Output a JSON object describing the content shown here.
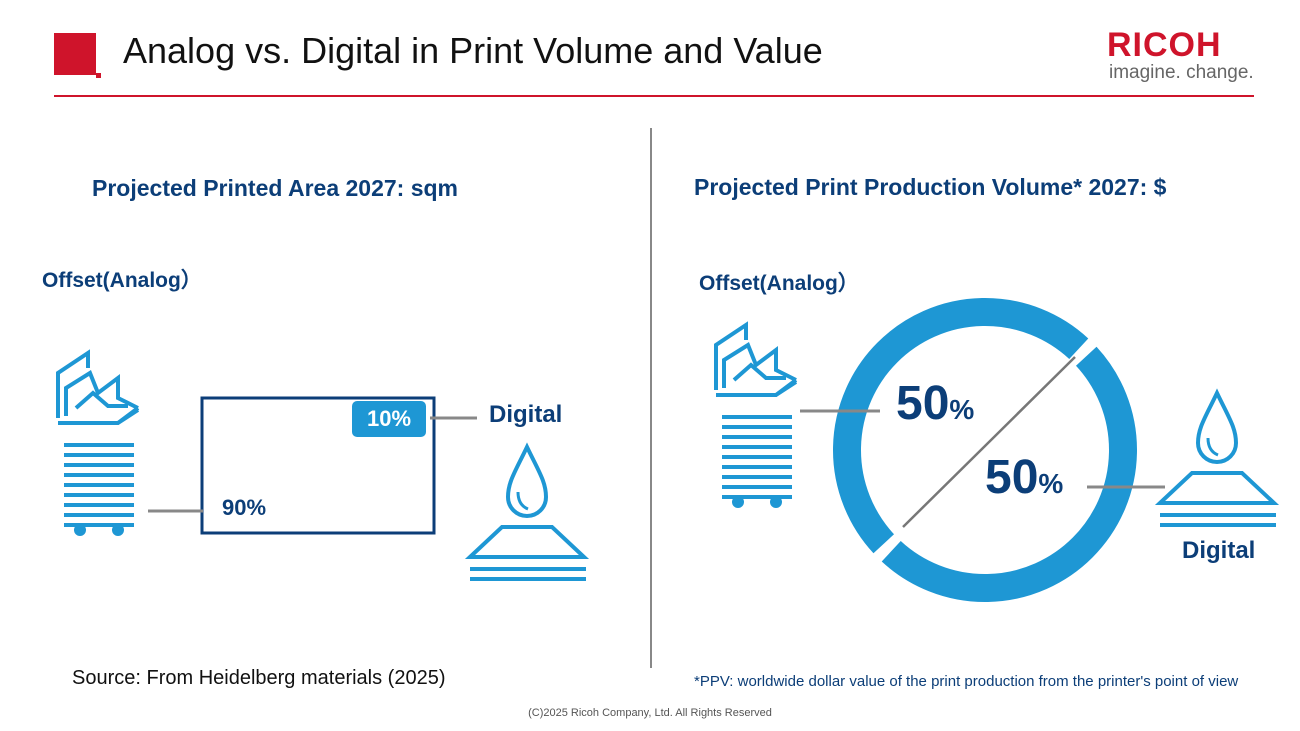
{
  "header": {
    "title": "Analog vs. Digital in Print Volume and Value",
    "logo": "RICOH",
    "tagline": "imagine. change.",
    "accent": "#cf142b"
  },
  "left": {
    "subtitle": "Projected Printed Area 2027: sqm",
    "analog_label": "Offset(Analog）",
    "digital_label": "Digital"
  },
  "right": {
    "subtitle": "Projected Print Production Volume* 2027: $",
    "analog_label": "Offset(Analog）",
    "digital_label": "Digital"
  },
  "chart_data": [
    {
      "type": "area",
      "title": "Projected Printed Area 2027: sqm",
      "categories": [
        "Offset(Analog)",
        "Digital"
      ],
      "values": [
        90,
        10
      ],
      "labels": [
        "90%",
        "10%"
      ]
    },
    {
      "type": "pie",
      "title": "Projected Print Production Volume* 2027: $",
      "categories": [
        "Offset(Analog)",
        "Digital"
      ],
      "values": [
        50,
        50
      ],
      "labels": [
        "50",
        "50"
      ],
      "unit": "%",
      "color": "#1e97d4"
    }
  ],
  "footer": {
    "source": "Source: From Heidelberg materials (2025)",
    "note": "*PPV: worldwide dollar value of the print production from the printer's point of view",
    "copyright": "(C)2025 Ricoh Company, Ltd. All Rights Reserved"
  }
}
